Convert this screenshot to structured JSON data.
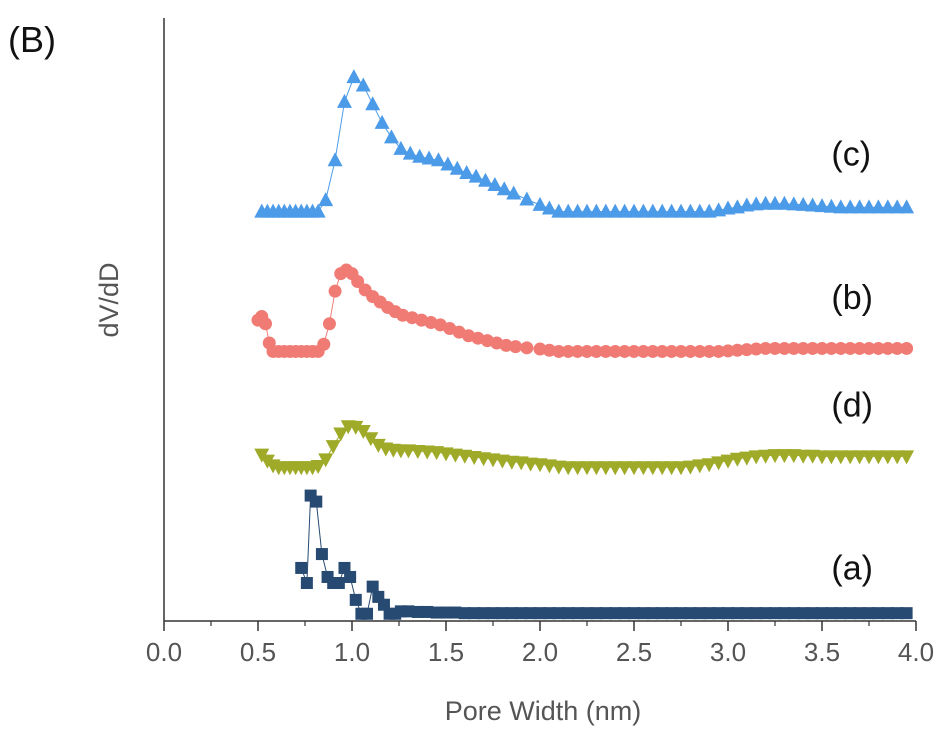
{
  "chart_data": {
    "type": "scatter",
    "panel_label": "(B)",
    "xlabel": "Pore Width (nm)",
    "ylabel": "dV/dD",
    "xlim": [
      0.0,
      4.0
    ],
    "ylim": [
      0,
      1
    ],
    "x_ticks": [
      "0.0",
      "0.5",
      "1.0",
      "1.5",
      "2.0",
      "2.5",
      "3.0",
      "3.5",
      "4.0"
    ],
    "y_ticks_shown": false,
    "grid": false,
    "series": [
      {
        "name": "(c)",
        "marker": "triangle-up",
        "color": "#4C9BE8",
        "x": [
          0.52,
          0.55,
          0.58,
          0.61,
          0.64,
          0.67,
          0.7,
          0.73,
          0.76,
          0.79,
          0.82,
          0.86,
          0.91,
          0.96,
          1.01,
          1.06,
          1.11,
          1.16,
          1.21,
          1.26,
          1.31,
          1.36,
          1.41,
          1.46,
          1.51,
          1.56,
          1.61,
          1.66,
          1.71,
          1.76,
          1.81,
          1.86,
          1.93,
          2.0,
          2.05,
          2.1,
          2.15,
          2.2,
          2.25,
          2.3,
          2.35,
          2.4,
          2.45,
          2.5,
          2.55,
          2.6,
          2.65,
          2.7,
          2.75,
          2.8,
          2.85,
          2.9,
          2.95,
          3.0,
          3.05,
          3.1,
          3.15,
          3.2,
          3.25,
          3.3,
          3.35,
          3.4,
          3.45,
          3.5,
          3.55,
          3.6,
          3.65,
          3.7,
          3.75,
          3.8,
          3.85,
          3.9,
          3.95
        ],
        "y": [
          0.679,
          0.679,
          0.679,
          0.679,
          0.679,
          0.679,
          0.679,
          0.679,
          0.679,
          0.679,
          0.679,
          0.698,
          0.764,
          0.861,
          0.902,
          0.888,
          0.857,
          0.826,
          0.802,
          0.783,
          0.775,
          0.77,
          0.767,
          0.764,
          0.757,
          0.75,
          0.743,
          0.737,
          0.73,
          0.723,
          0.716,
          0.709,
          0.699,
          0.69,
          0.684,
          0.679,
          0.679,
          0.679,
          0.679,
          0.679,
          0.679,
          0.679,
          0.679,
          0.679,
          0.679,
          0.679,
          0.679,
          0.679,
          0.679,
          0.679,
          0.679,
          0.679,
          0.681,
          0.684,
          0.686,
          0.689,
          0.691,
          0.692,
          0.692,
          0.692,
          0.691,
          0.69,
          0.689,
          0.688,
          0.687,
          0.686,
          0.686,
          0.686,
          0.686,
          0.686,
          0.686,
          0.686,
          0.686
        ]
      },
      {
        "name": "(b)",
        "marker": "circle",
        "color": "#F07B74",
        "x": [
          0.5,
          0.52,
          0.54,
          0.56,
          0.58,
          0.61,
          0.64,
          0.67,
          0.7,
          0.73,
          0.76,
          0.79,
          0.82,
          0.85,
          0.88,
          0.91,
          0.94,
          0.97,
          1.0,
          1.03,
          1.07,
          1.11,
          1.15,
          1.19,
          1.23,
          1.27,
          1.32,
          1.37,
          1.42,
          1.47,
          1.52,
          1.57,
          1.62,
          1.67,
          1.72,
          1.77,
          1.82,
          1.87,
          1.93,
          2.0,
          2.05,
          2.1,
          2.15,
          2.2,
          2.25,
          2.3,
          2.35,
          2.4,
          2.45,
          2.5,
          2.55,
          2.6,
          2.65,
          2.7,
          2.75,
          2.8,
          2.85,
          2.9,
          2.95,
          3.0,
          3.05,
          3.1,
          3.15,
          3.2,
          3.25,
          3.3,
          3.35,
          3.4,
          3.45,
          3.5,
          3.55,
          3.6,
          3.65,
          3.7,
          3.75,
          3.8,
          3.85,
          3.9,
          3.95
        ],
        "y": [
          0.499,
          0.505,
          0.493,
          0.461,
          0.447,
          0.447,
          0.447,
          0.447,
          0.447,
          0.447,
          0.447,
          0.447,
          0.447,
          0.459,
          0.493,
          0.547,
          0.576,
          0.582,
          0.576,
          0.563,
          0.549,
          0.538,
          0.529,
          0.52,
          0.513,
          0.507,
          0.503,
          0.499,
          0.495,
          0.491,
          0.485,
          0.479,
          0.473,
          0.469,
          0.465,
          0.461,
          0.457,
          0.455,
          0.453,
          0.451,
          0.449,
          0.447,
          0.447,
          0.447,
          0.447,
          0.447,
          0.447,
          0.447,
          0.447,
          0.447,
          0.447,
          0.447,
          0.447,
          0.447,
          0.447,
          0.447,
          0.447,
          0.447,
          0.447,
          0.448,
          0.449,
          0.45,
          0.451,
          0.452,
          0.452,
          0.452,
          0.452,
          0.452,
          0.452,
          0.452,
          0.452,
          0.452,
          0.452,
          0.452,
          0.452,
          0.452,
          0.452,
          0.452,
          0.452
        ]
      },
      {
        "name": "(d)",
        "marker": "triangle-down",
        "color": "#9FAA28",
        "x": [
          0.52,
          0.55,
          0.58,
          0.61,
          0.64,
          0.67,
          0.7,
          0.73,
          0.76,
          0.79,
          0.82,
          0.86,
          0.9,
          0.94,
          0.98,
          1.02,
          1.06,
          1.1,
          1.14,
          1.18,
          1.22,
          1.26,
          1.3,
          1.35,
          1.4,
          1.45,
          1.5,
          1.55,
          1.6,
          1.65,
          1.7,
          1.75,
          1.8,
          1.85,
          1.9,
          1.95,
          2.0,
          2.05,
          2.1,
          2.15,
          2.2,
          2.25,
          2.3,
          2.35,
          2.4,
          2.45,
          2.5,
          2.55,
          2.6,
          2.65,
          2.7,
          2.75,
          2.8,
          2.85,
          2.9,
          2.95,
          3.0,
          3.05,
          3.1,
          3.15,
          3.2,
          3.25,
          3.3,
          3.35,
          3.4,
          3.45,
          3.5,
          3.55,
          3.6,
          3.65,
          3.7,
          3.75,
          3.8,
          3.85,
          3.9,
          3.95
        ],
        "y": [
          0.276,
          0.266,
          0.258,
          0.255,
          0.255,
          0.255,
          0.255,
          0.255,
          0.255,
          0.255,
          0.257,
          0.268,
          0.29,
          0.311,
          0.323,
          0.322,
          0.315,
          0.303,
          0.292,
          0.286,
          0.284,
          0.283,
          0.283,
          0.282,
          0.281,
          0.28,
          0.278,
          0.276,
          0.274,
          0.272,
          0.27,
          0.268,
          0.266,
          0.264,
          0.263,
          0.261,
          0.26,
          0.258,
          0.256,
          0.255,
          0.255,
          0.255,
          0.255,
          0.255,
          0.255,
          0.255,
          0.255,
          0.255,
          0.255,
          0.255,
          0.255,
          0.255,
          0.256,
          0.258,
          0.26,
          0.263,
          0.266,
          0.269,
          0.271,
          0.273,
          0.274,
          0.275,
          0.275,
          0.275,
          0.274,
          0.274,
          0.273,
          0.273,
          0.273,
          0.273,
          0.273,
          0.273,
          0.273,
          0.273,
          0.273,
          0.273
        ]
      },
      {
        "name": "(a)",
        "marker": "square",
        "color": "#274A72",
        "x": [
          0.73,
          0.76,
          0.78,
          0.81,
          0.84,
          0.87,
          0.9,
          0.93,
          0.96,
          0.99,
          1.02,
          1.05,
          1.08,
          1.11,
          1.14,
          1.17,
          1.2,
          1.23,
          1.26,
          1.3,
          1.35,
          1.4,
          1.45,
          1.5,
          1.55,
          1.6,
          1.65,
          1.7,
          1.75,
          1.8,
          1.85,
          1.9,
          1.95,
          2.0,
          2.05,
          2.1,
          2.15,
          2.2,
          2.25,
          2.3,
          2.35,
          2.4,
          2.45,
          2.5,
          2.55,
          2.6,
          2.65,
          2.7,
          2.75,
          2.8,
          2.85,
          2.9,
          2.95,
          3.0,
          3.05,
          3.1,
          3.15,
          3.2,
          3.25,
          3.3,
          3.35,
          3.4,
          3.45,
          3.5,
          3.55,
          3.6,
          3.65,
          3.7,
          3.75,
          3.8,
          3.85,
          3.9,
          3.95
        ],
        "y": [
          0.088,
          0.063,
          0.208,
          0.198,
          0.111,
          0.073,
          0.063,
          0.063,
          0.088,
          0.073,
          0.035,
          0.012,
          0.012,
          0.057,
          0.04,
          0.027,
          0.012,
          0.012,
          0.016,
          0.016,
          0.015,
          0.015,
          0.014,
          0.014,
          0.014,
          0.013,
          0.013,
          0.013,
          0.013,
          0.013,
          0.013,
          0.013,
          0.013,
          0.013,
          0.013,
          0.013,
          0.013,
          0.013,
          0.013,
          0.013,
          0.013,
          0.013,
          0.013,
          0.013,
          0.013,
          0.013,
          0.013,
          0.013,
          0.013,
          0.013,
          0.013,
          0.013,
          0.013,
          0.013,
          0.013,
          0.013,
          0.013,
          0.013,
          0.013,
          0.013,
          0.013,
          0.013,
          0.013,
          0.013,
          0.013,
          0.013,
          0.013,
          0.013,
          0.013,
          0.013,
          0.013,
          0.013,
          0.013
        ]
      }
    ],
    "annotations": [
      {
        "text": "(c)",
        "x": 3.55,
        "y": 0.755
      },
      {
        "text": "(b)",
        "x": 3.55,
        "y": 0.517
      },
      {
        "text": "(d)",
        "x": 3.55,
        "y": 0.339
      },
      {
        "text": "(a)",
        "x": 3.55,
        "y": 0.069
      }
    ]
  }
}
